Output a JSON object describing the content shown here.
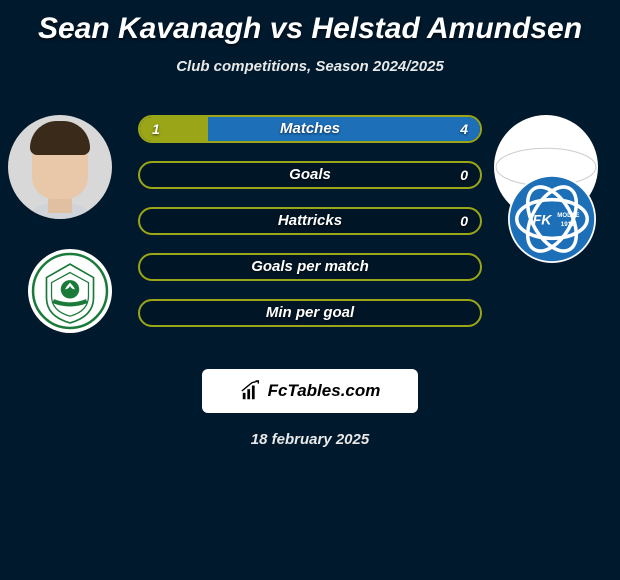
{
  "title": "Sean Kavanagh vs Helstad Amundsen",
  "subtitle": "Club competitions, Season 2024/2025",
  "date": "18 february 2025",
  "logo_text": "FcTables.com",
  "colors": {
    "left": "#9aa517",
    "right": "#1d6fb8",
    "bar_border": "#9aa517"
  },
  "bars": [
    {
      "label": "Matches",
      "left_val": "1",
      "right_val": "4",
      "left_pct": 20,
      "right_pct": 80
    },
    {
      "label": "Goals",
      "left_val": "",
      "right_val": "0",
      "left_pct": 0,
      "right_pct": 0
    },
    {
      "label": "Hattricks",
      "left_val": "",
      "right_val": "0",
      "left_pct": 0,
      "right_pct": 0
    },
    {
      "label": "Goals per match",
      "left_val": "",
      "right_val": "",
      "left_pct": 0,
      "right_pct": 0
    },
    {
      "label": "Min per goal",
      "left_val": "",
      "right_val": "",
      "left_pct": 0,
      "right_pct": 0
    }
  ]
}
